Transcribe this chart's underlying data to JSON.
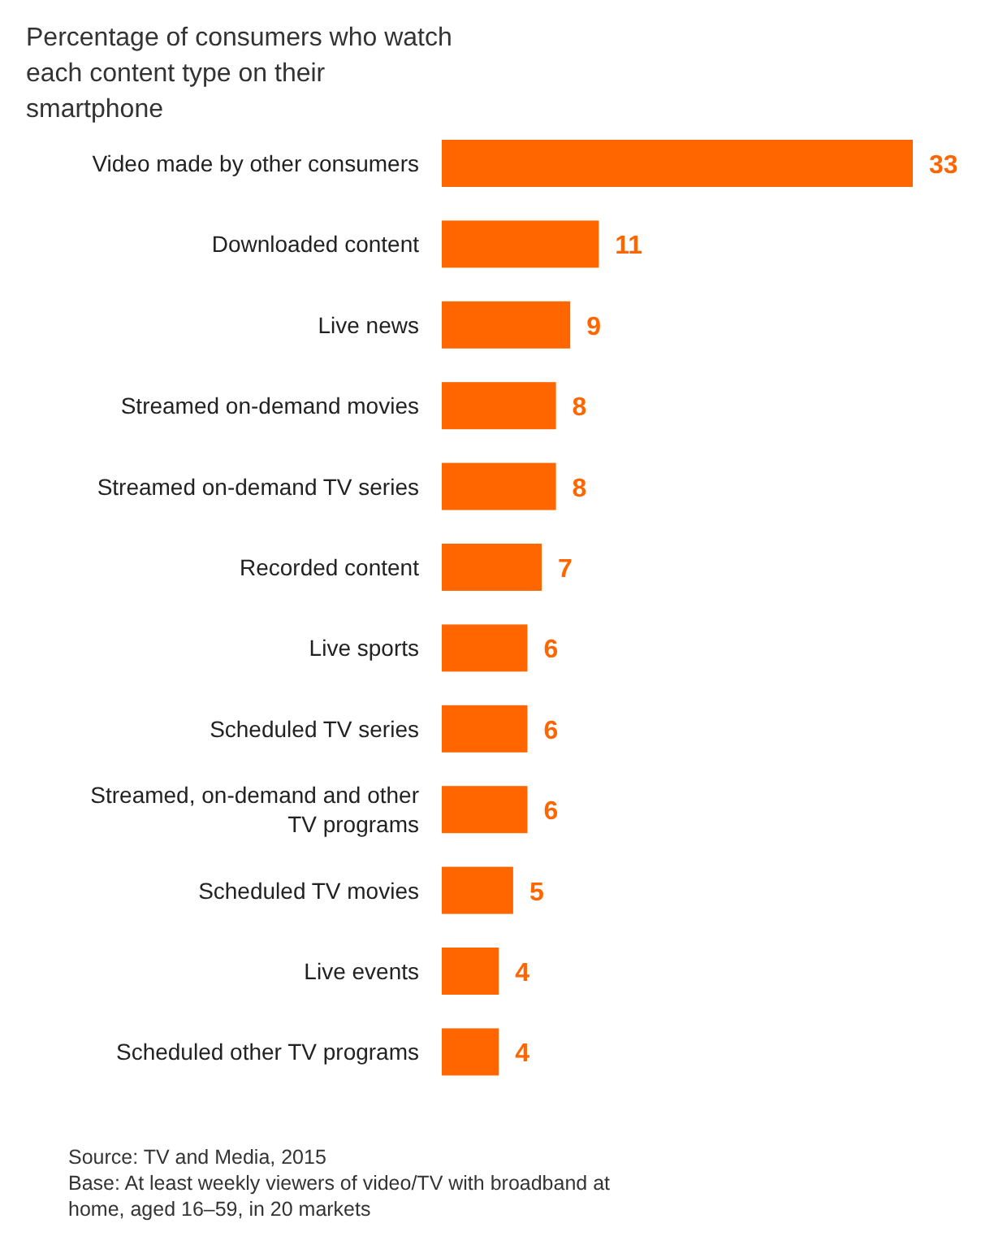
{
  "chart_data": {
    "type": "bar",
    "orientation": "horizontal",
    "title": "Percentage of consumers who watch each content type on their smartphone",
    "categories": [
      "Video made by other consumers",
      "Downloaded content",
      "Live news",
      "Streamed on-demand movies",
      "Streamed on-demand TV series",
      "Recorded content",
      "Live sports",
      "Scheduled TV series",
      "Streamed, on-demand and other TV programs",
      "Scheduled TV movies",
      "Live events",
      "Scheduled other TV programs"
    ],
    "values": [
      33,
      11,
      9,
      8,
      8,
      7,
      6,
      6,
      6,
      5,
      4,
      4
    ],
    "color": "#ff6600",
    "data_labels": true,
    "annotations": [
      "Source: TV and Media, 2015",
      "Base: At least weekly viewers of video/TV with broadband at home, aged 16–59, in 20 markets"
    ]
  }
}
